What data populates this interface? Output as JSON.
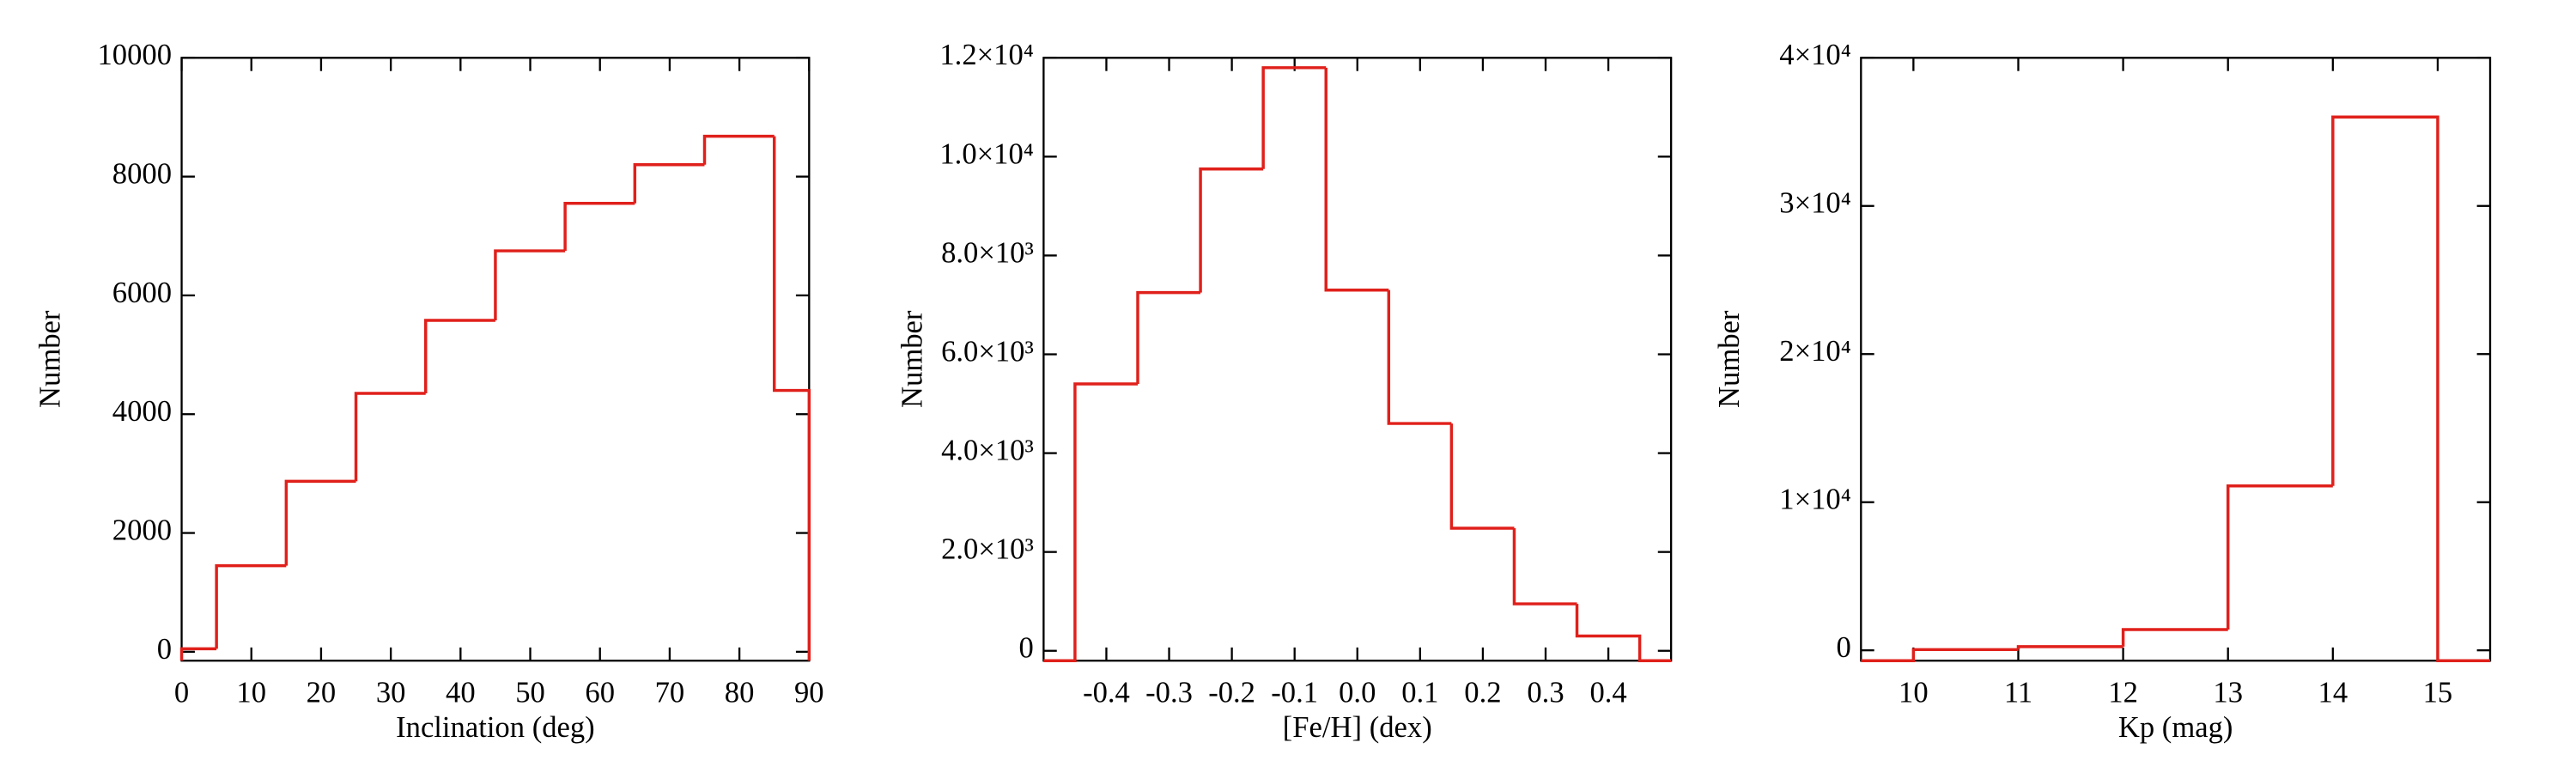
{
  "chart_data": [
    {
      "type": "histogram",
      "xlabel": "Inclination (deg)",
      "ylabel": "Number",
      "color": "#e0201b",
      "bins": [
        0,
        5,
        15,
        25,
        35,
        45,
        55,
        65,
        75,
        85,
        90
      ],
      "values": [
        50,
        1450,
        2870,
        4350,
        5580,
        6750,
        7550,
        8200,
        8680,
        4400
      ],
      "xlim": [
        0,
        90
      ],
      "ylim": [
        -150,
        10000
      ],
      "xticks": [
        0,
        10,
        20,
        30,
        40,
        50,
        60,
        70,
        80,
        90
      ],
      "yticks": [
        0,
        2000,
        4000,
        6000,
        8000,
        10000
      ]
    },
    {
      "type": "histogram",
      "xlabel": "[Fe/H] (dex)",
      "ylabel": "Number",
      "color": "#e0201b",
      "bins": [
        -0.45,
        -0.35,
        -0.25,
        -0.15,
        -0.05,
        0.05,
        0.15,
        0.25,
        0.35,
        0.45
      ],
      "values": [
        5400,
        7250,
        9750,
        11800,
        7300,
        4600,
        2480,
        950,
        300
      ],
      "xlim": [
        -0.5,
        0.5
      ],
      "ylim": [
        -200,
        12000
      ],
      "xticks": [
        -0.4,
        -0.3,
        -0.2,
        -0.1,
        {
          "value": 0,
          "label": "0.0"
        },
        0.1,
        0.2,
        0.3,
        0.4
      ],
      "yticks": [
        0,
        {
          "value": 2000,
          "label": "2.0×10³"
        },
        {
          "value": 4000,
          "label": "4.0×10³"
        },
        {
          "value": 6000,
          "label": "6.0×10³"
        },
        {
          "value": 8000,
          "label": "8.0×10³"
        },
        {
          "value": 10000,
          "label": "1.0×10⁴"
        },
        {
          "value": 12000,
          "label": "1.2×10⁴"
        }
      ]
    },
    {
      "type": "histogram",
      "xlabel": "Kp (mag)",
      "ylabel": "Number",
      "color": "#e0201b",
      "bins": [
        10,
        11,
        12,
        13,
        14,
        15
      ],
      "values": [
        50,
        250,
        1400,
        11100,
        36000
      ],
      "xlim": [
        9.5,
        15.5
      ],
      "ylim": [
        -700,
        40000
      ],
      "xticks": [
        10,
        11,
        12,
        13,
        14,
        15
      ],
      "yticks": [
        0,
        {
          "value": 10000,
          "label": "1×10⁴"
        },
        {
          "value": 20000,
          "label": "2×10⁴"
        },
        {
          "value": 30000,
          "label": "3×10⁴"
        },
        {
          "value": 40000,
          "label": "4×10⁴"
        }
      ]
    }
  ]
}
